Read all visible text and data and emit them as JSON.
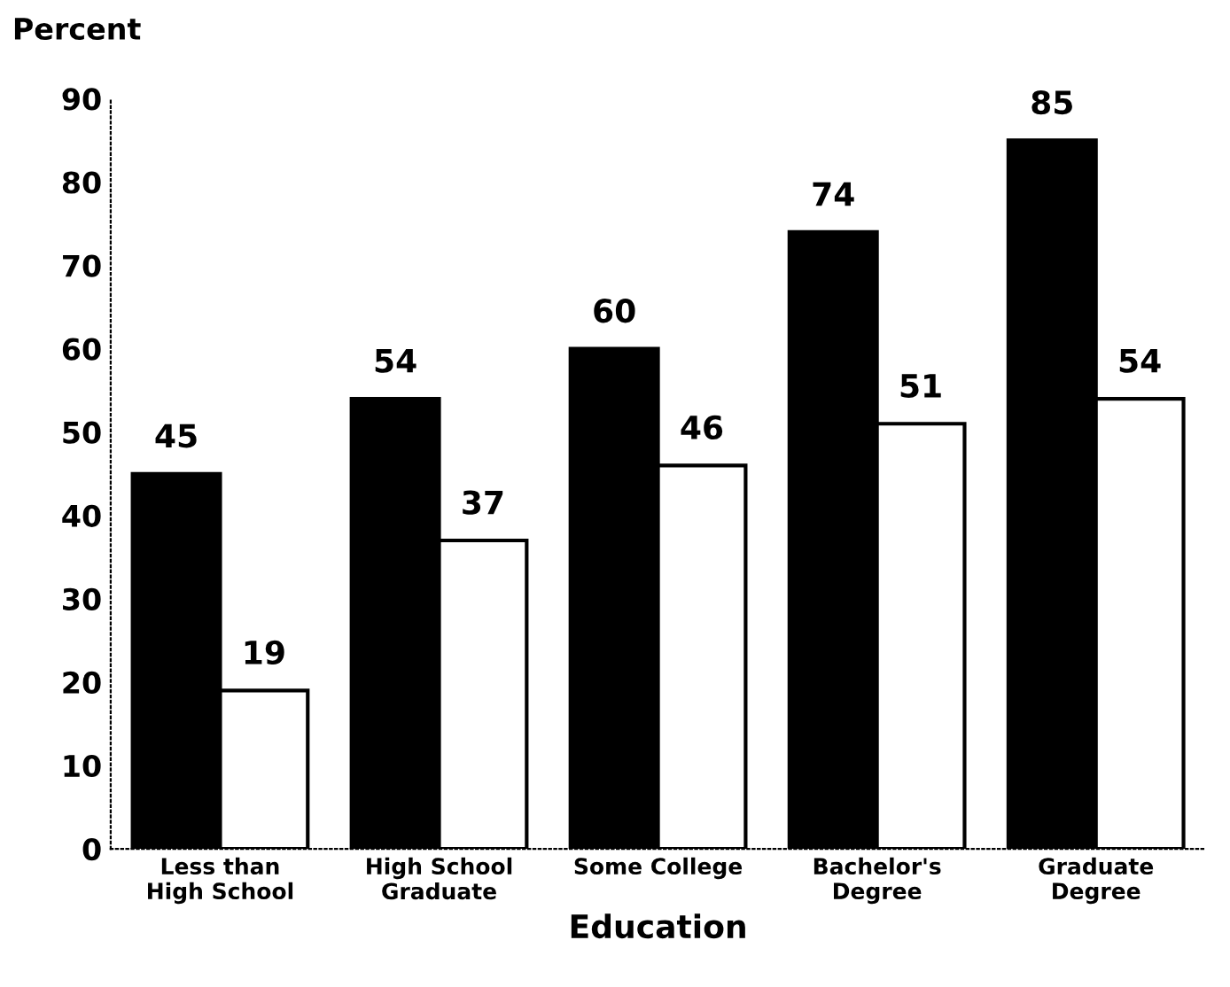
{
  "chart_data": {
    "type": "bar",
    "ylabel": "Percent",
    "xlabel": "Education",
    "categories": [
      "Less than\nHigh School",
      "High School\nGraduate",
      "Some College",
      "Bachelor's\nDegree",
      "Graduate\nDegree"
    ],
    "series": [
      {
        "color": "#000000",
        "values": [
          45,
          54,
          60,
          74,
          85
        ]
      },
      {
        "color": "#ffffff",
        "values": [
          19,
          37,
          46,
          51,
          54
        ]
      }
    ],
    "ylim": [
      0,
      90
    ],
    "yticks": [
      0,
      10,
      20,
      30,
      40,
      50,
      60,
      70,
      80,
      90
    ],
    "data_labels": true,
    "grid": false,
    "legend": false
  }
}
